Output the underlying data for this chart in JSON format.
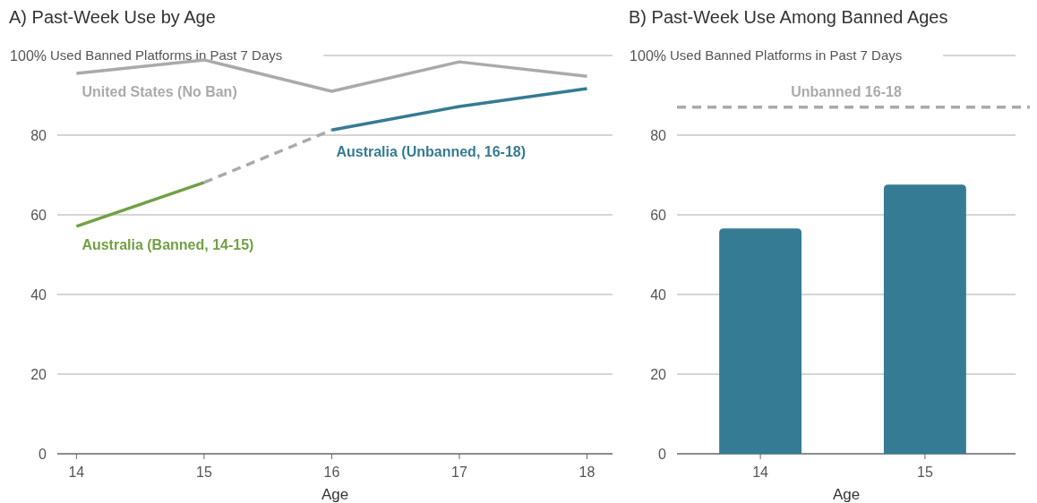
{
  "chart_data": [
    {
      "type": "line",
      "title": "A) Past-Week Use by Age",
      "xlabel": "Age",
      "xlim": [
        13.85,
        18.2
      ],
      "xticks": [
        14,
        15,
        16,
        17,
        18
      ],
      "ylim": [
        0,
        100
      ],
      "yticks": [
        0,
        20,
        40,
        60,
        80,
        {
          "value": 100,
          "label": "100%"
        }
      ],
      "annotations": [
        "Used Banned Platforms in Past 7 Days"
      ],
      "grid": "y",
      "marker": "none",
      "series": [
        {
          "name": "United States (No Ban)",
          "color": "#aaaaaa",
          "x": [
            14,
            15,
            16,
            17,
            18
          ],
          "values": [
            95.5,
            98.9,
            91,
            98.4,
            94.8
          ]
        },
        {
          "name": "Australia (Banned, 14-15)",
          "color": "#72a044",
          "x": [
            14,
            15
          ],
          "values": [
            57.1,
            68.1
          ]
        },
        {
          "color": "#aaaaaa",
          "x": [
            15,
            16
          ],
          "values": [
            68.1,
            81.3
          ],
          "line_style": "dashed"
        },
        {
          "name": "Australia (Unbanned, 16-18)",
          "color": "#357b93",
          "x": [
            16,
            17,
            18
          ],
          "values": [
            81.3,
            87.2,
            91.7
          ]
        }
      ]
    },
    {
      "type": "bar",
      "title": "B) Past-Week Use Among Banned Ages",
      "xlabel": "Age",
      "categories": [
        "14",
        "15"
      ],
      "values": [
        56.6,
        67.6
      ],
      "color": "#357b93",
      "ylim": [
        0,
        100
      ],
      "yticks": [
        0,
        20,
        40,
        60,
        80,
        {
          "value": 100,
          "label": "100%"
        }
      ],
      "annotations": [
        "Used Banned Platforms in Past 7 Days"
      ],
      "grid": "y",
      "ref_lines": [
        {
          "axis": "y",
          "value": 87,
          "label": "Unbanned 16-18",
          "color": "#aaaaaa",
          "line_style": "dashed"
        }
      ]
    }
  ]
}
